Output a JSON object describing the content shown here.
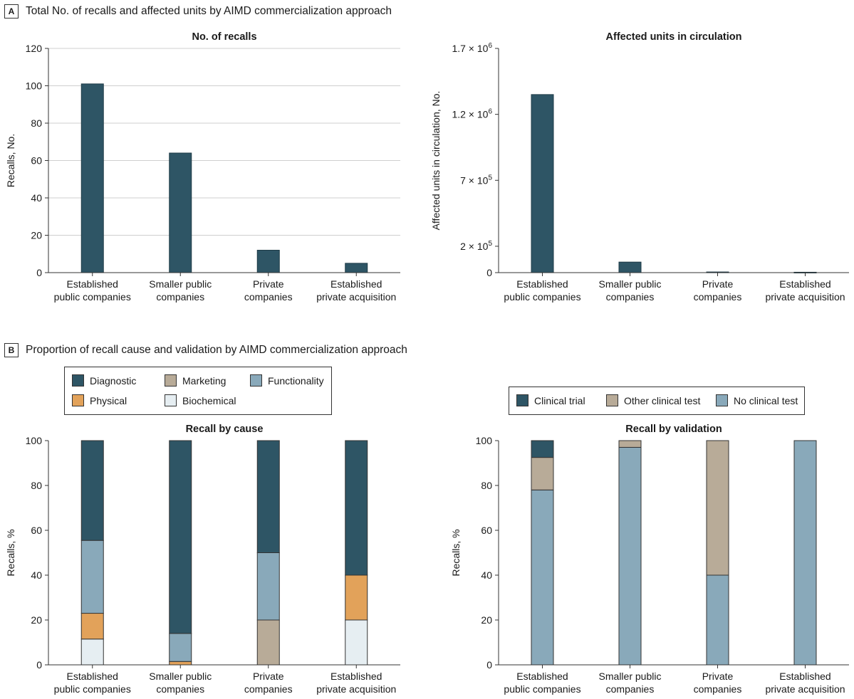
{
  "panels": {
    "a": {
      "letter": "A",
      "title": "Total No. of recalls and affected units by AIMD commercialization approach"
    },
    "b": {
      "letter": "B",
      "title": "Proportion of recall cause and validation by AIMD commercialization approach"
    }
  },
  "colors": {
    "diagnostic": "#2e5565",
    "marketing": "#b8ab98",
    "functionality": "#89a9ba",
    "physical": "#e2a25a",
    "biochemical": "#e6eef2",
    "clinical_trial": "#2e5565",
    "other_clinical_test": "#b8ab98",
    "no_clinical_test": "#89a9ba"
  },
  "legends": {
    "cause": [
      {
        "label": "Diagnostic",
        "color_key": "diagnostic"
      },
      {
        "label": "Marketing",
        "color_key": "marketing"
      },
      {
        "label": "Functionality",
        "color_key": "functionality"
      },
      {
        "label": "Physical",
        "color_key": "physical"
      },
      {
        "label": "Biochemical",
        "color_key": "biochemical"
      }
    ],
    "validation": [
      {
        "label": "Clinical trial",
        "color_key": "clinical_trial"
      },
      {
        "label": "Other clinical test",
        "color_key": "other_clinical_test"
      },
      {
        "label": "No clinical test",
        "color_key": "no_clinical_test"
      }
    ]
  },
  "chart_data": [
    {
      "id": "recalls",
      "type": "bar",
      "title": "No. of recalls",
      "ylabel": "Recalls, No.",
      "xlabel": "",
      "categories": [
        [
          "Established",
          "public companies"
        ],
        [
          "Smaller public",
          "companies"
        ],
        [
          "Private",
          "companies"
        ],
        [
          "Established",
          "private acquisition"
        ]
      ],
      "values": [
        101,
        64,
        12,
        5
      ],
      "ylim": [
        0,
        120
      ],
      "ticks": [
        0,
        20,
        40,
        60,
        80,
        100,
        120
      ],
      "tick_labels": [
        "0",
        "20",
        "40",
        "60",
        "80",
        "100",
        "120"
      ],
      "grid": true
    },
    {
      "id": "units",
      "type": "bar",
      "title": "Affected units in circulation",
      "ylabel": "Affected units in circulation, No.",
      "xlabel": "",
      "categories": [
        [
          "Established",
          "public companies"
        ],
        [
          "Smaller public",
          "companies"
        ],
        [
          "Private",
          "companies"
        ],
        [
          "Established",
          "private acquisition"
        ]
      ],
      "values": [
        1350000,
        80000,
        5000,
        3000
      ],
      "ylim": [
        0,
        1700000
      ],
      "ticks": [
        0,
        200000,
        700000,
        1200000,
        1700000
      ],
      "tick_labels": [
        {
          "base": "0",
          "exp": ""
        },
        {
          "base": "2 × 10",
          "exp": "5"
        },
        {
          "base": "7 × 10",
          "exp": "5"
        },
        {
          "base": "1.2 × 10",
          "exp": "6"
        },
        {
          "base": "1.7 × 10",
          "exp": "6"
        }
      ],
      "grid": false
    },
    {
      "id": "cause",
      "type": "bar",
      "stacked": true,
      "title": "Recall by cause",
      "ylabel": "Recalls, %",
      "xlabel": "",
      "categories": [
        [
          "Established",
          "public companies"
        ],
        [
          "Smaller public",
          "companies"
        ],
        [
          "Private",
          "companies"
        ],
        [
          "Established",
          "private acquisition"
        ]
      ],
      "series": [
        {
          "name": "Biochemical",
          "color_key": "biochemical",
          "values": [
            11.5,
            0,
            0,
            20
          ]
        },
        {
          "name": "Physical",
          "color_key": "physical",
          "values": [
            11.5,
            1.5,
            0,
            20
          ]
        },
        {
          "name": "Marketing",
          "color_key": "marketing",
          "values": [
            0,
            0,
            20,
            0
          ]
        },
        {
          "name": "Functionality",
          "color_key": "functionality",
          "values": [
            32.5,
            12.5,
            30,
            0
          ]
        },
        {
          "name": "Diagnostic",
          "color_key": "diagnostic",
          "values": [
            44.5,
            86,
            50,
            60
          ]
        }
      ],
      "ylim": [
        0,
        100
      ],
      "ticks": [
        0,
        20,
        40,
        60,
        80,
        100
      ],
      "tick_labels": [
        "0",
        "20",
        "40",
        "60",
        "80",
        "100"
      ],
      "grid": false
    },
    {
      "id": "validation",
      "type": "bar",
      "stacked": true,
      "title": "Recall by validation",
      "ylabel": "Recalls, %",
      "xlabel": "",
      "categories": [
        [
          "Established",
          "public companies"
        ],
        [
          "Smaller public",
          "companies"
        ],
        [
          "Private",
          "companies"
        ],
        [
          "Established",
          "private acquisition"
        ]
      ],
      "series": [
        {
          "name": "No clinical test",
          "color_key": "no_clinical_test",
          "values": [
            78,
            97,
            40,
            100
          ]
        },
        {
          "name": "Other clinical test",
          "color_key": "other_clinical_test",
          "values": [
            14.5,
            3,
            60,
            0
          ]
        },
        {
          "name": "Clinical trial",
          "color_key": "clinical_trial",
          "values": [
            7.5,
            0,
            0,
            0
          ]
        }
      ],
      "ylim": [
        0,
        100
      ],
      "ticks": [
        0,
        20,
        40,
        60,
        80,
        100
      ],
      "tick_labels": [
        "0",
        "20",
        "40",
        "60",
        "80",
        "100"
      ],
      "grid": false
    }
  ]
}
